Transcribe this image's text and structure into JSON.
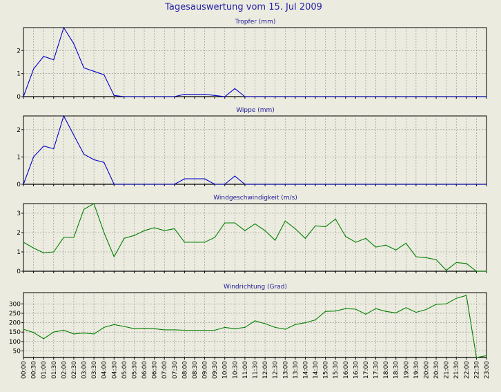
{
  "title": "Tagesauswertung vom 15. Jul 2009",
  "colors": {
    "background": "#ecebdf",
    "title": "#2222aa",
    "panel_title": "#1a1a99",
    "rain_line": "#0000cc",
    "wind_line": "#008000",
    "grid": "#8c8c8c"
  },
  "x_ticks": [
    "00:00",
    "00:30",
    "01:00",
    "01:30",
    "02:00",
    "02:30",
    "03:00",
    "03:30",
    "04:00",
    "04:30",
    "05:00",
    "05:30",
    "06:00",
    "06:30",
    "07:00",
    "07:30",
    "08:00",
    "08:30",
    "09:00",
    "09:30",
    "10:00",
    "10:30",
    "11:00",
    "11:30",
    "12:00",
    "12:30",
    "13:00",
    "13:30",
    "14:00",
    "14:30",
    "15:00",
    "15:30",
    "16:00",
    "16:30",
    "17:00",
    "17:30",
    "18:00",
    "18:30",
    "19:00",
    "19:30",
    "20:00",
    "20:30",
    "21:00",
    "21:30",
    "22:00",
    "22:30",
    "23:00"
  ],
  "chart_data": [
    {
      "type": "line",
      "title": "Tropfer (mm)",
      "grid": true,
      "ylim": [
        0,
        3
      ],
      "yticks": [
        0,
        1,
        2
      ],
      "series": [
        {
          "color": "#0000cc",
          "points": [
            [
              0,
              0
            ],
            [
              0.5,
              1.2
            ],
            [
              1,
              1.75
            ],
            [
              1.5,
              1.6
            ],
            [
              2,
              3
            ],
            [
              2.5,
              2.3
            ],
            [
              3,
              1.25
            ],
            [
              3.5,
              1.1
            ],
            [
              4,
              0.95
            ],
            [
              4.5,
              0.05
            ],
            [
              5,
              0
            ],
            [
              7.5,
              0
            ],
            [
              8,
              0.1
            ],
            [
              9,
              0.1
            ],
            [
              9.5,
              0.05
            ],
            [
              10,
              0
            ],
            [
              10.5,
              0.35
            ],
            [
              11,
              0
            ],
            [
              23,
              0
            ]
          ]
        }
      ]
    },
    {
      "type": "line",
      "title": "Wippe (mm)",
      "grid": true,
      "ylim": [
        0,
        2.5
      ],
      "yticks": [
        0,
        1,
        2
      ],
      "series": [
        {
          "color": "#0000cc",
          "points": [
            [
              0,
              0
            ],
            [
              0.5,
              1.0
            ],
            [
              1,
              1.4
            ],
            [
              1.5,
              1.3
            ],
            [
              2,
              2.5
            ],
            [
              2.5,
              1.8
            ],
            [
              3,
              1.1
            ],
            [
              3.5,
              0.9
            ],
            [
              4,
              0.8
            ],
            [
              4.5,
              0
            ],
            [
              7.5,
              0
            ],
            [
              8,
              0.2
            ],
            [
              9,
              0.2
            ],
            [
              9.5,
              0
            ],
            [
              10,
              0
            ],
            [
              10.5,
              0.3
            ],
            [
              11,
              0
            ],
            [
              23,
              0
            ]
          ]
        }
      ]
    },
    {
      "type": "line",
      "title": "Windgeschwindigkeit (m/s)",
      "grid": true,
      "ylim": [
        0,
        3.5
      ],
      "yticks": [
        0,
        1,
        2,
        3
      ],
      "series": [
        {
          "color": "#008000",
          "points": [
            [
              0,
              1.5
            ],
            [
              0.5,
              1.2
            ],
            [
              1,
              0.95
            ],
            [
              1.5,
              1.0
            ],
            [
              2,
              1.75
            ],
            [
              2.5,
              1.75
            ],
            [
              3,
              3.2
            ],
            [
              3.5,
              3.5
            ],
            [
              4,
              2.0
            ],
            [
              4.5,
              0.75
            ],
            [
              5,
              1.7
            ],
            [
              5.5,
              1.85
            ],
            [
              6,
              2.1
            ],
            [
              6.5,
              2.25
            ],
            [
              7,
              2.1
            ],
            [
              7.5,
              2.2
            ],
            [
              8,
              1.5
            ],
            [
              9,
              1.5
            ],
            [
              9.5,
              1.75
            ],
            [
              10,
              2.5
            ],
            [
              10.5,
              2.5
            ],
            [
              11,
              2.1
            ],
            [
              11.5,
              2.45
            ],
            [
              12,
              2.1
            ],
            [
              12.5,
              1.6
            ],
            [
              13,
              2.6
            ],
            [
              13.5,
              2.2
            ],
            [
              14,
              1.7
            ],
            [
              14.5,
              2.35
            ],
            [
              15,
              2.3
            ],
            [
              15.5,
              2.7
            ],
            [
              16,
              1.8
            ],
            [
              16.5,
              1.5
            ],
            [
              17,
              1.7
            ],
            [
              17.5,
              1.25
            ],
            [
              18,
              1.35
            ],
            [
              18.5,
              1.1
            ],
            [
              19,
              1.45
            ],
            [
              19.5,
              0.75
            ],
            [
              20,
              0.7
            ],
            [
              20.5,
              0.6
            ],
            [
              21,
              0.05
            ],
            [
              21.5,
              0.45
            ],
            [
              22,
              0.4
            ],
            [
              22.5,
              0
            ],
            [
              23,
              0
            ]
          ]
        }
      ]
    },
    {
      "type": "line",
      "title": "Windrichtung (Grad)",
      "grid": true,
      "ylim": [
        15,
        360
      ],
      "yticks": [
        50,
        100,
        150,
        200,
        250,
        300
      ],
      "series": [
        {
          "color": "#008000",
          "points": [
            [
              0,
              165
            ],
            [
              0.5,
              148
            ],
            [
              1,
              115
            ],
            [
              1.5,
              150
            ],
            [
              2,
              160
            ],
            [
              2.5,
              140
            ],
            [
              3,
              145
            ],
            [
              3.5,
              140
            ],
            [
              4,
              175
            ],
            [
              4.5,
              190
            ],
            [
              5,
              180
            ],
            [
              5.5,
              168
            ],
            [
              6,
              170
            ],
            [
              6.5,
              168
            ],
            [
              7,
              162
            ],
            [
              7.5,
              162
            ],
            [
              8,
              160
            ],
            [
              9,
              160
            ],
            [
              9.5,
              160
            ],
            [
              10,
              175
            ],
            [
              10.5,
              168
            ],
            [
              11,
              175
            ],
            [
              11.5,
              210
            ],
            [
              12,
              195
            ],
            [
              12.5,
              175
            ],
            [
              13,
              165
            ],
            [
              13.5,
              190
            ],
            [
              14,
              200
            ],
            [
              14.5,
              215
            ],
            [
              15,
              260
            ],
            [
              15.5,
              262
            ],
            [
              16,
              275
            ],
            [
              16.5,
              272
            ],
            [
              17,
              245
            ],
            [
              17.5,
              275
            ],
            [
              18,
              260
            ],
            [
              18.5,
              252
            ],
            [
              19,
              280
            ],
            [
              19.5,
              255
            ],
            [
              20,
              270
            ],
            [
              20.5,
              298
            ],
            [
              21,
              300
            ],
            [
              21.5,
              330
            ],
            [
              22,
              345
            ],
            [
              22.5,
              15
            ],
            [
              23,
              25
            ]
          ]
        }
      ]
    }
  ]
}
